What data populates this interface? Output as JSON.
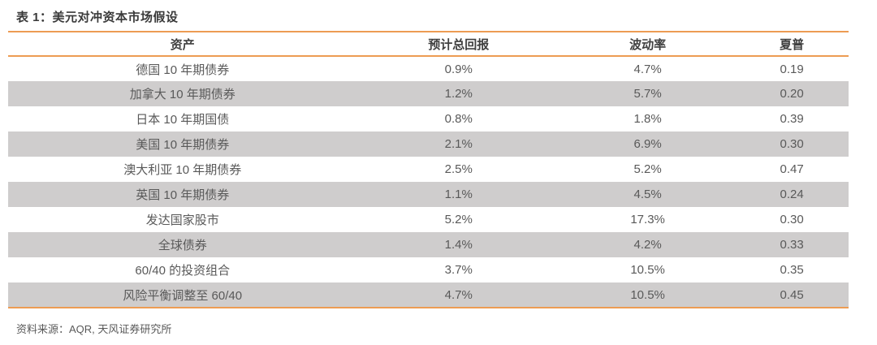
{
  "title": "表 1：美元对冲资本市场假设",
  "table": {
    "columns": [
      "资产",
      "预计总回报",
      "波动率",
      "夏普"
    ],
    "rows": [
      {
        "asset": "德国 10 年期债券",
        "expected_return": "0.9%",
        "volatility": "4.7%",
        "sharpe": "0.19"
      },
      {
        "asset": "加拿大 10 年期债券",
        "expected_return": "1.2%",
        "volatility": "5.7%",
        "sharpe": "0.20"
      },
      {
        "asset": "日本 10 年期国债",
        "expected_return": "0.8%",
        "volatility": "1.8%",
        "sharpe": "0.39"
      },
      {
        "asset": "美国 10 年期债券",
        "expected_return": "2.1%",
        "volatility": "6.9%",
        "sharpe": "0.30"
      },
      {
        "asset": "澳大利亚 10 年期债券",
        "expected_return": "2.5%",
        "volatility": "5.2%",
        "sharpe": "0.47"
      },
      {
        "asset": "英国 10 年期债券",
        "expected_return": "1.1%",
        "volatility": "4.5%",
        "sharpe": "0.24"
      },
      {
        "asset": "发达国家股市",
        "expected_return": "5.2%",
        "volatility": "17.3%",
        "sharpe": "0.30"
      },
      {
        "asset": "全球债券",
        "expected_return": "1.4%",
        "volatility": "4.2%",
        "sharpe": "0.33"
      },
      {
        "asset": "60/40 的投资组合",
        "expected_return": "3.7%",
        "volatility": "10.5%",
        "sharpe": "0.35"
      },
      {
        "asset": "风险平衡调整至 60/40",
        "expected_return": "4.7%",
        "volatility": "10.5%",
        "sharpe": "0.45"
      }
    ]
  },
  "footer": {
    "source": "资料来源：AQR, 天风证券研究所"
  },
  "colors": {
    "accent": "#ED9C53",
    "row_stripe": "#CFCDCD",
    "header_text": "#3F3F3F",
    "cell_text": "#595959"
  }
}
